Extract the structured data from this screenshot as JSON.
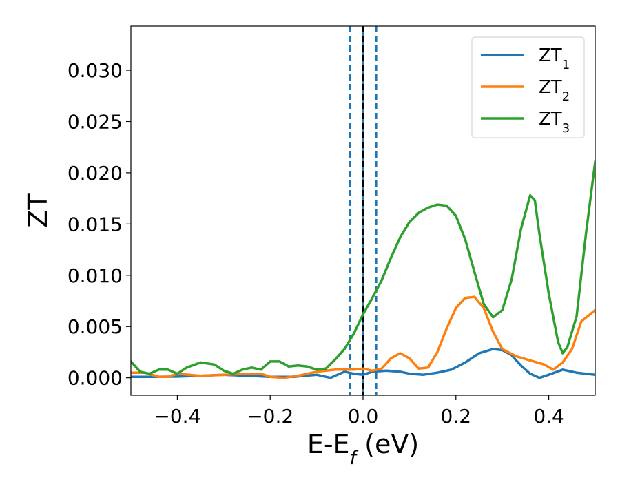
{
  "chart_data": {
    "type": "line",
    "xlabel": "E-E",
    "xlabel_sub": "f",
    "xlabel_unit": " (eV)",
    "ylabel": "ZT",
    "xlim": [
      -0.5,
      0.5
    ],
    "ylim": [
      -0.0017,
      0.0343
    ],
    "xticks": [
      -0.4,
      -0.2,
      0.0,
      0.2,
      0.4
    ],
    "xtick_labels": [
      "−0.4",
      "−0.2",
      "0.0",
      "0.2",
      "0.4"
    ],
    "yticks": [
      0.0,
      0.005,
      0.01,
      0.015,
      0.02,
      0.025,
      0.03
    ],
    "ytick_labels": [
      "0.000",
      "0.005",
      "0.010",
      "0.015",
      "0.020",
      "0.025",
      "0.030"
    ],
    "grid": false,
    "legend_position": "top-right",
    "vertical_lines": [
      {
        "x": -0.028,
        "style": "dashed",
        "color": "#1f77b4"
      },
      {
        "x": 0.028,
        "style": "dashed",
        "color": "#1f77b4"
      },
      {
        "x": 0.0,
        "style": "solid",
        "color": "#1f77b4"
      },
      {
        "x": 0.0,
        "style": "dashed",
        "color": "#000000"
      }
    ],
    "series": [
      {
        "name": "ZT",
        "name_sub": "1",
        "color": "#1f77b4",
        "points": [
          [
            -0.5,
            0.0001
          ],
          [
            -0.45,
            0.0001
          ],
          [
            -0.4,
            0.00012
          ],
          [
            -0.35,
            0.0002
          ],
          [
            -0.3,
            0.0003
          ],
          [
            -0.25,
            0.0002
          ],
          [
            -0.2,
            0.0001
          ],
          [
            -0.15,
            0.0001
          ],
          [
            -0.1,
            0.0003
          ],
          [
            -0.07,
            0.0
          ],
          [
            -0.04,
            0.0006
          ],
          [
            -0.02,
            0.0004
          ],
          [
            0.0,
            0.0003
          ],
          [
            0.02,
            0.0006
          ],
          [
            0.05,
            0.0007
          ],
          [
            0.08,
            0.0006
          ],
          [
            0.1,
            0.0004
          ],
          [
            0.13,
            0.0003
          ],
          [
            0.16,
            0.0005
          ],
          [
            0.19,
            0.0008
          ],
          [
            0.22,
            0.0015
          ],
          [
            0.25,
            0.0024
          ],
          [
            0.28,
            0.0028
          ],
          [
            0.3,
            0.0027
          ],
          [
            0.32,
            0.0022
          ],
          [
            0.34,
            0.0012
          ],
          [
            0.36,
            0.0004
          ],
          [
            0.38,
            0.0
          ],
          [
            0.4,
            0.0003
          ],
          [
            0.43,
            0.0008
          ],
          [
            0.46,
            0.0005
          ],
          [
            0.5,
            0.0003
          ]
        ]
      },
      {
        "name": "ZT",
        "name_sub": "2",
        "color": "#ff7f0e",
        "points": [
          [
            -0.5,
            0.0005
          ],
          [
            -0.47,
            0.0005
          ],
          [
            -0.44,
            0.0001
          ],
          [
            -0.42,
            0.0001
          ],
          [
            -0.4,
            0.0004
          ],
          [
            -0.35,
            0.0002
          ],
          [
            -0.3,
            0.0003
          ],
          [
            -0.25,
            0.0004
          ],
          [
            -0.22,
            0.0004
          ],
          [
            -0.2,
            0.0001
          ],
          [
            -0.17,
            0.0
          ],
          [
            -0.14,
            0.0002
          ],
          [
            -0.1,
            0.0006
          ],
          [
            -0.06,
            0.0008
          ],
          [
            -0.02,
            0.0008
          ],
          [
            0.0,
            0.0009
          ],
          [
            0.02,
            0.0007
          ],
          [
            0.04,
            0.0009
          ],
          [
            0.06,
            0.0019
          ],
          [
            0.08,
            0.0024
          ],
          [
            0.1,
            0.0019
          ],
          [
            0.12,
            0.0009
          ],
          [
            0.14,
            0.001
          ],
          [
            0.16,
            0.0025
          ],
          [
            0.18,
            0.0048
          ],
          [
            0.2,
            0.0068
          ],
          [
            0.22,
            0.0078
          ],
          [
            0.24,
            0.0079
          ],
          [
            0.26,
            0.0068
          ],
          [
            0.28,
            0.0045
          ],
          [
            0.3,
            0.0028
          ],
          [
            0.33,
            0.0021
          ],
          [
            0.36,
            0.0017
          ],
          [
            0.39,
            0.0013
          ],
          [
            0.41,
            0.0008
          ],
          [
            0.43,
            0.0015
          ],
          [
            0.45,
            0.0028
          ],
          [
            0.47,
            0.0055
          ],
          [
            0.5,
            0.0066
          ]
        ]
      },
      {
        "name": "ZT",
        "name_sub": "3",
        "color": "#2ca02c",
        "points": [
          [
            -0.5,
            0.0016
          ],
          [
            -0.48,
            0.0006
          ],
          [
            -0.46,
            0.0004
          ],
          [
            -0.44,
            0.0008
          ],
          [
            -0.42,
            0.0008
          ],
          [
            -0.4,
            0.0004
          ],
          [
            -0.38,
            0.001
          ],
          [
            -0.35,
            0.0015
          ],
          [
            -0.32,
            0.0013
          ],
          [
            -0.3,
            0.0007
          ],
          [
            -0.28,
            0.0004
          ],
          [
            -0.26,
            0.0008
          ],
          [
            -0.24,
            0.001
          ],
          [
            -0.22,
            0.0008
          ],
          [
            -0.2,
            0.0016
          ],
          [
            -0.18,
            0.0016
          ],
          [
            -0.16,
            0.0011
          ],
          [
            -0.14,
            0.0012
          ],
          [
            -0.12,
            0.0011
          ],
          [
            -0.1,
            0.0008
          ],
          [
            -0.08,
            0.0009
          ],
          [
            -0.06,
            0.0018
          ],
          [
            -0.04,
            0.0028
          ],
          [
            -0.02,
            0.0043
          ],
          [
            0.0,
            0.0062
          ],
          [
            0.02,
            0.0078
          ],
          [
            0.04,
            0.0095
          ],
          [
            0.06,
            0.0117
          ],
          [
            0.08,
            0.0137
          ],
          [
            0.1,
            0.0152
          ],
          [
            0.12,
            0.0161
          ],
          [
            0.14,
            0.0166
          ],
          [
            0.16,
            0.0169
          ],
          [
            0.18,
            0.0168
          ],
          [
            0.2,
            0.0158
          ],
          [
            0.22,
            0.0135
          ],
          [
            0.24,
            0.0103
          ],
          [
            0.26,
            0.0072
          ],
          [
            0.28,
            0.0059
          ],
          [
            0.3,
            0.0066
          ],
          [
            0.32,
            0.0096
          ],
          [
            0.34,
            0.0145
          ],
          [
            0.36,
            0.0178
          ],
          [
            0.37,
            0.0173
          ],
          [
            0.38,
            0.014
          ],
          [
            0.4,
            0.0082
          ],
          [
            0.42,
            0.0035
          ],
          [
            0.43,
            0.0024
          ],
          [
            0.44,
            0.003
          ],
          [
            0.46,
            0.006
          ],
          [
            0.48,
            0.014
          ],
          [
            0.5,
            0.0211
          ]
        ]
      }
    ]
  }
}
